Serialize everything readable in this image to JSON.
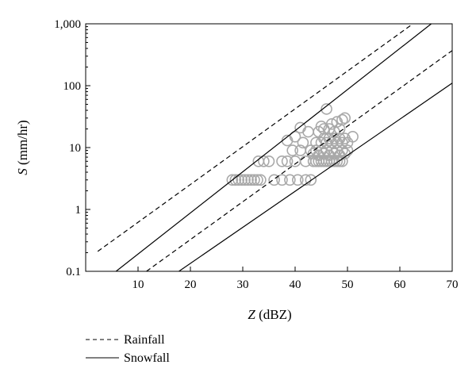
{
  "chart_data": {
    "type": "scatter",
    "title": "",
    "xlabel": {
      "italic": "Z",
      "rest": " (dBZ)"
    },
    "ylabel": {
      "italic": "S",
      "rest": " (mm/hr)"
    },
    "xlim": [
      0,
      70
    ],
    "ylim": [
      0.1,
      1000
    ],
    "yscale": "log",
    "grid": false,
    "legend_position": "bottom-left",
    "x_ticks": [
      10,
      20,
      30,
      40,
      50,
      60,
      70
    ],
    "x_tick_labels": [
      "10",
      "20",
      "30",
      "40",
      "50",
      "60",
      "70"
    ],
    "y_ticks": [
      0.1,
      1,
      10,
      100,
      1000
    ],
    "y_tick_labels": [
      "0.1",
      "1",
      "10",
      "100",
      "1,000"
    ],
    "legend": [
      {
        "label": "Rainfall",
        "style": "dashed"
      },
      {
        "label": "Snowfall",
        "style": "solid"
      }
    ],
    "colors": {
      "axes": "#000000",
      "lines": "#000000",
      "markers": "#a9a9a9"
    },
    "lines": [
      {
        "group": "Rainfall",
        "style": "dashed",
        "points": [
          [
            2.3,
            0.21
          ],
          [
            62.5,
            1000
          ]
        ]
      },
      {
        "group": "Rainfall",
        "style": "dashed",
        "points": [
          [
            11.6,
            0.1
          ],
          [
            70,
            370
          ]
        ]
      },
      {
        "group": "Snowfall",
        "style": "solid",
        "points": [
          [
            5.8,
            0.1
          ],
          [
            66,
            1000
          ]
        ]
      },
      {
        "group": "Snowfall",
        "style": "solid",
        "points": [
          [
            17.8,
            0.1
          ],
          [
            70,
            110
          ]
        ]
      }
    ],
    "scatter": {
      "marker": "open-circle",
      "points": [
        [
          28.0,
          3
        ],
        [
          28.6,
          3
        ],
        [
          29.2,
          3
        ],
        [
          29.8,
          3
        ],
        [
          30.4,
          3
        ],
        [
          31.0,
          3
        ],
        [
          31.6,
          3
        ],
        [
          32.2,
          3
        ],
        [
          32.8,
          3
        ],
        [
          33.4,
          3
        ],
        [
          36.0,
          3
        ],
        [
          37.5,
          3
        ],
        [
          39.0,
          3
        ],
        [
          40.5,
          3
        ],
        [
          42.0,
          3
        ],
        [
          43.0,
          3
        ],
        [
          33.0,
          6
        ],
        [
          34.0,
          6
        ],
        [
          35.0,
          6
        ],
        [
          37.5,
          6
        ],
        [
          38.5,
          6
        ],
        [
          40.0,
          6
        ],
        [
          42.0,
          6
        ],
        [
          43.5,
          6
        ],
        [
          44.0,
          6
        ],
        [
          44.5,
          6
        ],
        [
          45.0,
          6
        ],
        [
          45.5,
          6
        ],
        [
          46.0,
          6
        ],
        [
          46.5,
          6
        ],
        [
          47.0,
          6
        ],
        [
          47.5,
          6
        ],
        [
          48.0,
          6
        ],
        [
          48.5,
          6
        ],
        [
          49.0,
          6
        ],
        [
          39.5,
          9
        ],
        [
          41.0,
          9
        ],
        [
          43.0,
          9
        ],
        [
          44.0,
          9
        ],
        [
          45.0,
          9
        ],
        [
          46.0,
          9
        ],
        [
          47.0,
          9
        ],
        [
          48.0,
          9
        ],
        [
          49.0,
          9
        ],
        [
          50.0,
          9
        ],
        [
          43.5,
          8
        ],
        [
          44.5,
          7.5
        ],
        [
          45.5,
          8
        ],
        [
          46.5,
          7.5
        ],
        [
          47.5,
          8
        ],
        [
          48.5,
          7.5
        ],
        [
          49.5,
          8
        ],
        [
          44.0,
          12
        ],
        [
          45.0,
          12
        ],
        [
          46.0,
          12
        ],
        [
          47.0,
          12
        ],
        [
          48.0,
          12
        ],
        [
          49.0,
          12
        ],
        [
          50.0,
          12
        ],
        [
          38.5,
          13
        ],
        [
          40.0,
          15
        ],
        [
          41.5,
          12
        ],
        [
          45.5,
          14
        ],
        [
          46.5,
          14
        ],
        [
          47.5,
          14
        ],
        [
          48.5,
          14
        ],
        [
          49.5,
          14
        ],
        [
          51.0,
          15
        ],
        [
          42.5,
          18
        ],
        [
          44.5,
          18
        ],
        [
          45.5,
          20
        ],
        [
          46.5,
          20
        ],
        [
          47.5,
          18
        ],
        [
          48.5,
          20
        ],
        [
          41.0,
          21
        ],
        [
          45.0,
          22
        ],
        [
          47.0,
          24
        ],
        [
          48.0,
          26
        ],
        [
          49.0,
          28
        ],
        [
          49.5,
          30
        ],
        [
          46.0,
          42
        ]
      ]
    }
  }
}
